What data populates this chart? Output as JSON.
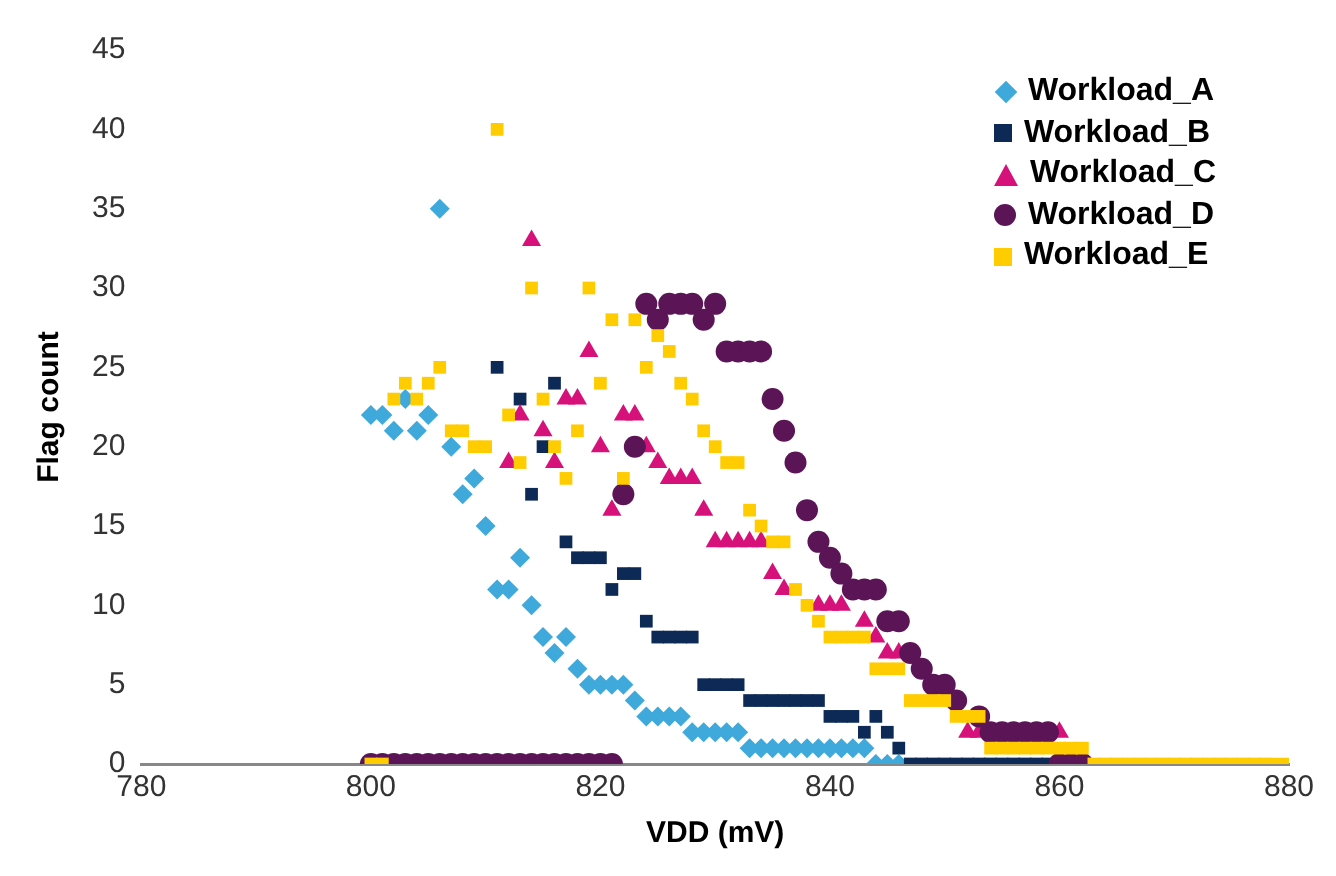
{
  "chart_data": {
    "type": "scatter",
    "xlabel": "VDD (mV)",
    "ylabel": "Flag count",
    "xlim": [
      780,
      880
    ],
    "xticks": [
      780,
      800,
      820,
      840,
      860,
      880
    ],
    "ylim": [
      0,
      45
    ],
    "yticks": [
      0,
      5,
      10,
      15,
      20,
      25,
      30,
      35,
      40,
      45
    ],
    "grid": false,
    "legend": "top right",
    "series": [
      {
        "name": "Workload_A",
        "color": "#3fa9dc",
        "marker": "diamond",
        "x": [
          800,
          801,
          802,
          803,
          804,
          805,
          806,
          807,
          808,
          809,
          810,
          811,
          812,
          813,
          814,
          815,
          816,
          817,
          818,
          819,
          820,
          821,
          822,
          823,
          824,
          825,
          826,
          827,
          828,
          829,
          830,
          831,
          832,
          833,
          834,
          835,
          836,
          837,
          838,
          839,
          840,
          841,
          842,
          843,
          844,
          845,
          846
        ],
        "values": [
          22,
          22,
          21,
          23,
          21,
          22,
          35,
          20,
          17,
          18,
          15,
          11,
          11,
          13,
          10,
          8,
          7,
          8,
          6,
          5,
          5,
          5,
          5,
          4,
          3,
          3,
          3,
          3,
          2,
          2,
          2,
          2,
          2,
          1,
          1,
          1,
          1,
          1,
          1,
          1,
          1,
          1,
          1,
          1,
          0,
          0,
          0
        ]
      },
      {
        "name": "Workload_B",
        "color": "#0d2a56",
        "marker": "square",
        "x": [
          811,
          813,
          814,
          815,
          816,
          817,
          818,
          819,
          820,
          821,
          822,
          823,
          824,
          825,
          826,
          827,
          828,
          829,
          830,
          831,
          832,
          833,
          834,
          835,
          836,
          837,
          838,
          839,
          840,
          841,
          842,
          843,
          844,
          845,
          846,
          847,
          848,
          849,
          850,
          851,
          852,
          853,
          854,
          855,
          856,
          857,
          858,
          859
        ],
        "values": [
          25,
          23,
          17,
          20,
          24,
          14,
          13,
          13,
          13,
          11,
          12,
          12,
          9,
          8,
          8,
          8,
          8,
          5,
          5,
          5,
          5,
          4,
          4,
          4,
          4,
          4,
          4,
          4,
          3,
          3,
          3,
          2,
          3,
          2,
          1,
          0,
          0,
          0,
          0,
          0,
          0,
          0,
          0,
          0,
          0,
          0,
          0,
          0
        ]
      },
      {
        "name": "Workload_C",
        "color": "#d6127a",
        "marker": "triangle",
        "x": [
          812,
          813,
          814,
          815,
          816,
          817,
          818,
          819,
          820,
          821,
          822,
          823,
          824,
          825,
          826,
          827,
          828,
          829,
          830,
          831,
          832,
          833,
          834,
          835,
          836,
          838,
          839,
          840,
          841,
          843,
          844,
          845,
          846,
          847,
          851,
          852,
          853,
          860
        ],
        "values": [
          19,
          22,
          33,
          21,
          19,
          23,
          23,
          26,
          20,
          16,
          22,
          22,
          20,
          19,
          18,
          18,
          18,
          16,
          14,
          14,
          14,
          14,
          14,
          12,
          11,
          null,
          10,
          10,
          10,
          9,
          8,
          7,
          7,
          null,
          null,
          2,
          2,
          2
        ]
      },
      {
        "name": "Workload_D",
        "color": "#5b1456",
        "marker": "circle",
        "x": [
          800,
          801,
          802,
          803,
          804,
          805,
          806,
          807,
          808,
          809,
          810,
          811,
          812,
          813,
          814,
          815,
          816,
          817,
          818,
          819,
          820,
          821,
          822,
          823,
          824,
          825,
          826,
          827,
          828,
          829,
          830,
          831,
          832,
          833,
          834,
          835,
          836,
          837,
          838,
          839,
          840,
          841,
          842,
          843,
          844,
          845,
          846,
          847,
          848,
          849,
          850,
          851,
          852,
          853,
          854,
          855,
          856,
          857,
          858,
          859,
          860,
          861,
          862
        ],
        "values": [
          0,
          0,
          0,
          0,
          0,
          0,
          0,
          0,
          0,
          0,
          0,
          0,
          0,
          0,
          0,
          0,
          0,
          0,
          0,
          0,
          0,
          0,
          17,
          20,
          29,
          28,
          29,
          29,
          29,
          28,
          29,
          26,
          26,
          26,
          26,
          23,
          21,
          19,
          16,
          14,
          13,
          12,
          11,
          11,
          11,
          9,
          9,
          7,
          6,
          5,
          5,
          4,
          null,
          3,
          2,
          2,
          2,
          2,
          2,
          2,
          0,
          0,
          0
        ]
      },
      {
        "name": "Workload_E",
        "color": "#ffcc00",
        "marker": "square",
        "x": [
          800,
          801,
          802,
          803,
          804,
          805,
          806,
          807,
          808,
          809,
          810,
          811,
          812,
          813,
          814,
          815,
          816,
          817,
          818,
          819,
          820,
          821,
          822,
          823,
          824,
          825,
          826,
          827,
          828,
          829,
          830,
          831,
          832,
          833,
          834,
          835,
          836,
          837,
          838,
          839,
          840,
          841,
          842,
          843,
          844,
          845,
          846,
          847,
          848,
          849,
          850,
          851,
          852,
          853,
          854,
          855,
          856,
          857,
          858,
          859,
          860,
          861,
          862,
          863,
          864,
          865,
          866,
          867,
          868,
          869,
          870,
          871,
          872,
          873,
          874,
          875,
          876,
          877,
          878,
          879,
          880
        ],
        "values": [
          0,
          0,
          23,
          24,
          23,
          24,
          25,
          21,
          21,
          20,
          20,
          40,
          22,
          19,
          30,
          23,
          20,
          18,
          21,
          30,
          24,
          28,
          18,
          28,
          25,
          27,
          26,
          24,
          23,
          21,
          20,
          19,
          19,
          16,
          15,
          14,
          14,
          11,
          10,
          9,
          8,
          8,
          8,
          8,
          6,
          6,
          6,
          4,
          4,
          4,
          4,
          3,
          3,
          3,
          1,
          1,
          1,
          1,
          1,
          1,
          1,
          1,
          1,
          0,
          0,
          0,
          0,
          0,
          0,
          0,
          0,
          0,
          0,
          0,
          0,
          0,
          0,
          0,
          0,
          0,
          0
        ]
      }
    ]
  }
}
